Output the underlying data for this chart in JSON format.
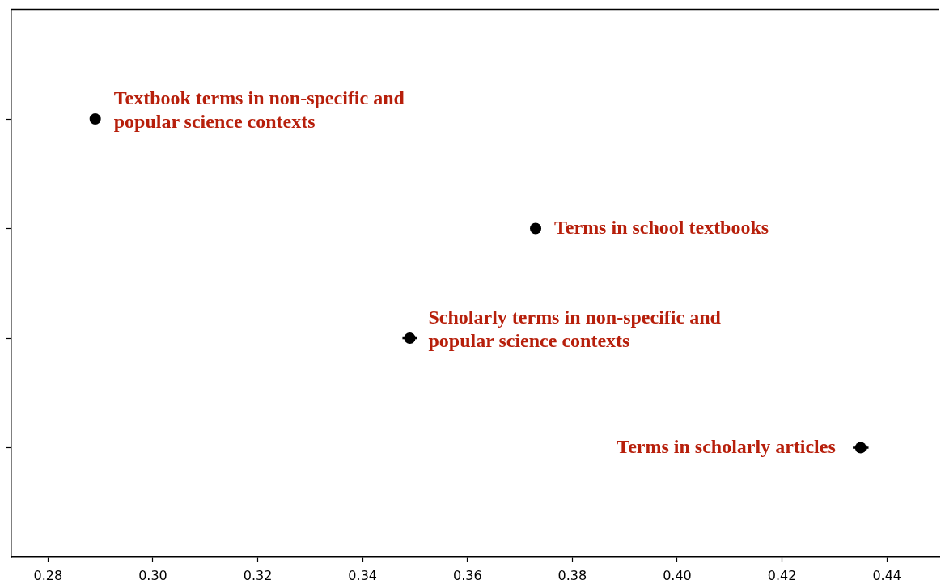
{
  "chart_data": {
    "type": "scatter",
    "orientation": "horizontal",
    "categories": [
      "Textbook terms in non-specific and popular science contexts",
      "Terms in school textbooks",
      "Scholarly terms in non-specific and popular science contexts",
      "Terms in scholarly articles"
    ],
    "values": [
      0.289,
      0.373,
      0.349,
      0.435
    ],
    "errors": [
      null,
      null,
      0.0014,
      0.0015
    ],
    "color": "#000000",
    "marker": "circle",
    "xlim": [
      0.273,
      0.45
    ],
    "xticks": [
      0.28,
      {
        "value": 0.3,
        "label": "0.30"
      },
      0.32,
      0.34,
      0.36,
      0.38,
      {
        "value": 0.4,
        "label": "0.40"
      },
      0.42,
      0.44
    ],
    "tick_labels": "x"
  }
}
